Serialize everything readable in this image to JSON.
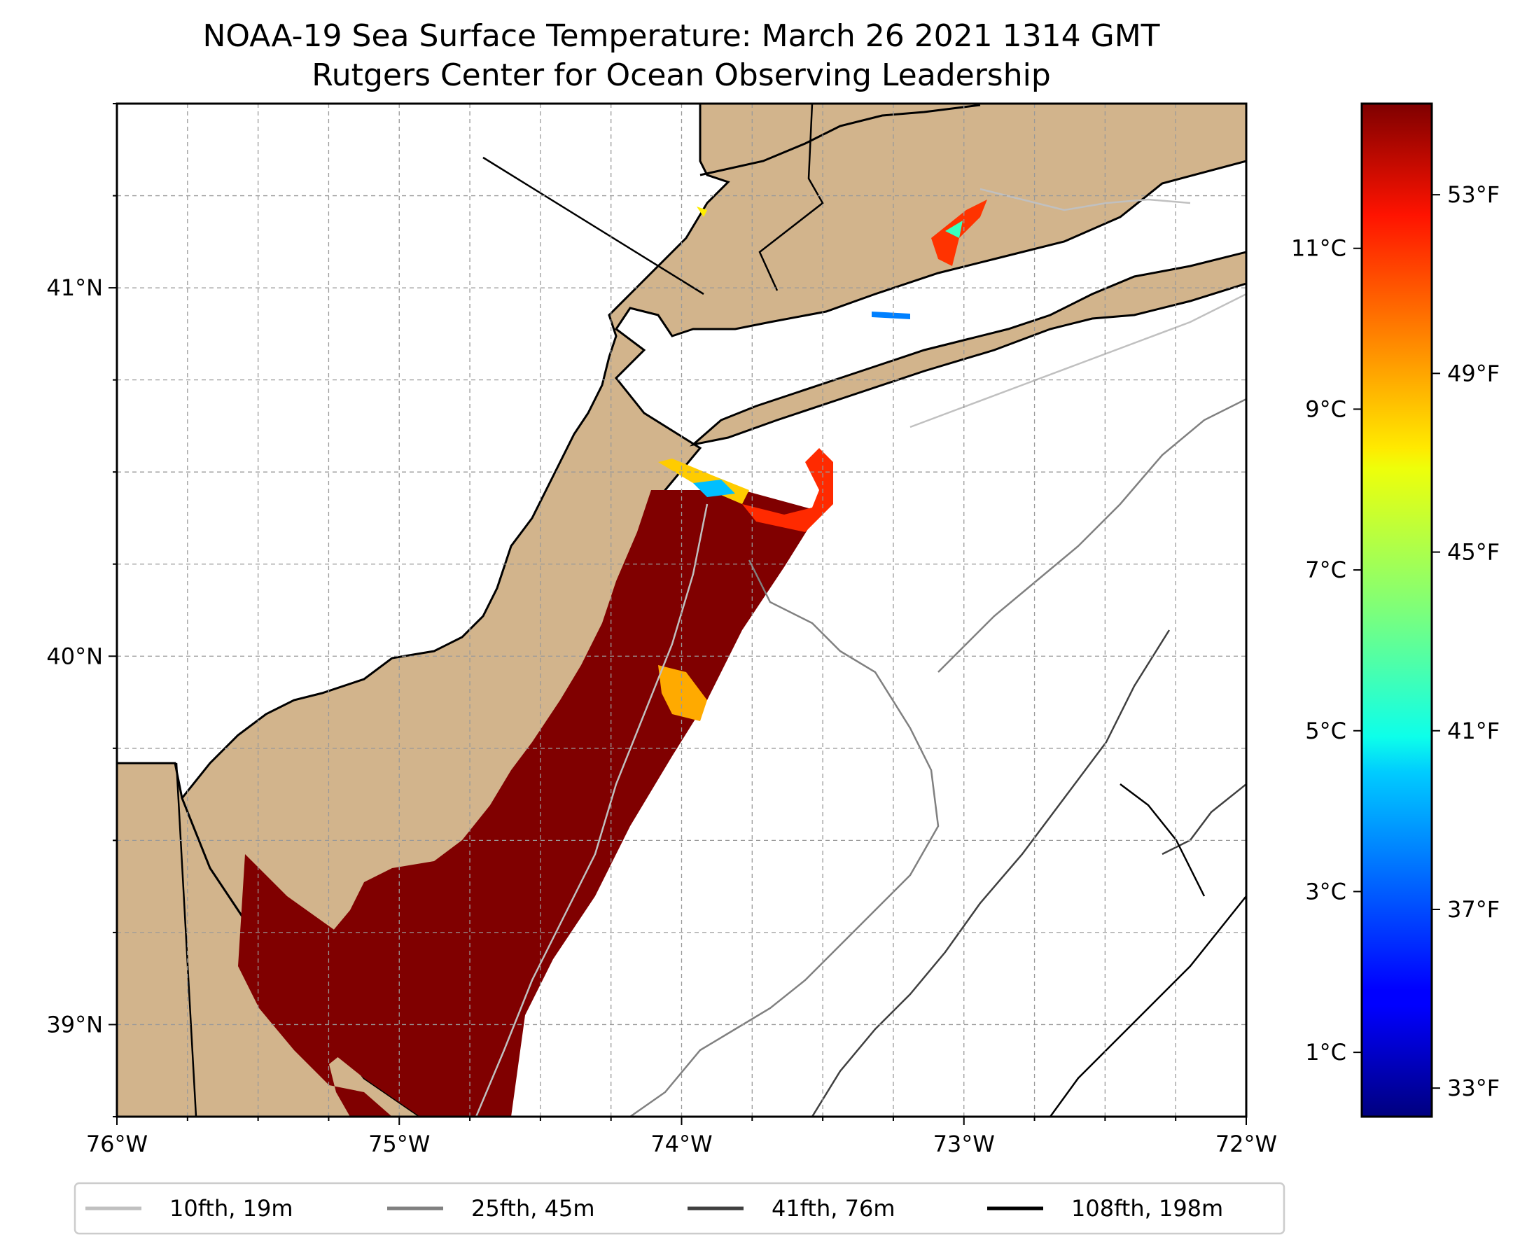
{
  "title_line1": "NOAA-19 Sea Surface Temperature: March 26 2021 1314 GMT",
  "title_line2": "Rutgers Center for Ocean Observing Leadership",
  "map": {
    "lon_range": [
      -76,
      -72
    ],
    "lat_range": [
      38.75,
      41.5
    ],
    "lon_ticks": [
      {
        "value": -76,
        "label": "76°W"
      },
      {
        "value": -75,
        "label": "75°W"
      },
      {
        "value": -74,
        "label": "74°W"
      },
      {
        "value": -73,
        "label": "73°W"
      },
      {
        "value": -72,
        "label": "72°W"
      }
    ],
    "lat_ticks": [
      {
        "value": 41,
        "label": "41°N"
      },
      {
        "value": 40,
        "label": "40°N"
      },
      {
        "value": 39,
        "label": "39°N"
      }
    ],
    "grid": true,
    "land_color": "#d2b48c",
    "ocean_color": "#ffffff"
  },
  "colorbar": {
    "colormap": "jet",
    "celsius_range": [
      0.2,
      12.8
    ],
    "celsius_ticks": [
      {
        "value": 1,
        "label": "1°C"
      },
      {
        "value": 3,
        "label": "3°C"
      },
      {
        "value": 5,
        "label": "5°C"
      },
      {
        "value": 7,
        "label": "7°C"
      },
      {
        "value": 9,
        "label": "9°C"
      },
      {
        "value": 11,
        "label": "11°C"
      }
    ],
    "fahrenheit_ticks": [
      {
        "value": 33,
        "label": "33°F"
      },
      {
        "value": 37,
        "label": "37°F"
      },
      {
        "value": 41,
        "label": "41°F"
      },
      {
        "value": 45,
        "label": "45°F"
      },
      {
        "value": 49,
        "label": "49°F"
      },
      {
        "value": 53,
        "label": "53°F"
      }
    ]
  },
  "legend": {
    "placement": "bottom",
    "entries": [
      {
        "label": "10fth, 19m",
        "color": "#c0c0c0"
      },
      {
        "label": "25fth, 45m",
        "color": "#808080"
      },
      {
        "label": "41fth, 76m",
        "color": "#404040"
      },
      {
        "label": "108fth, 198m",
        "color": "#000000"
      }
    ]
  }
}
